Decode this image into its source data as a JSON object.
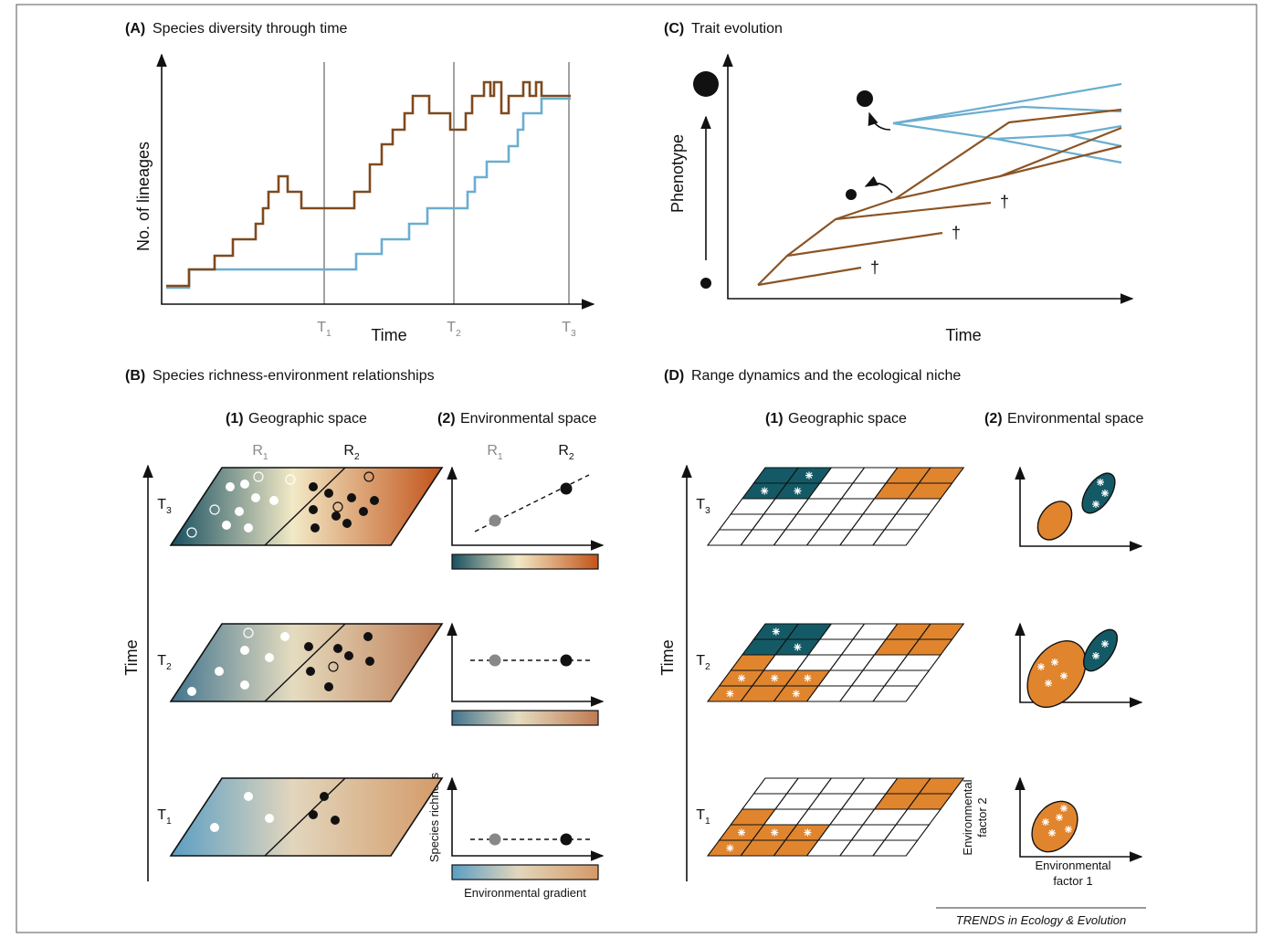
{
  "panel_a": {
    "label": "(A)",
    "title": "Species diversity through time",
    "y_label": "No. of lineages",
    "x_label": "Time",
    "ticks": [
      {
        "letter": "T",
        "index": "1"
      },
      {
        "letter": "T",
        "index": "2"
      },
      {
        "letter": "T",
        "index": "3"
      }
    ]
  },
  "panel_b": {
    "label": "(B)",
    "title": "Species richness-environment relationships",
    "time_label": "Time",
    "time_steps": [
      {
        "letter": "T",
        "index": "3"
      },
      {
        "letter": "T",
        "index": "2"
      },
      {
        "letter": "T",
        "index": "1"
      }
    ],
    "geo": {
      "label": "(1)",
      "title": "Geographic space",
      "regions": [
        {
          "letter": "R",
          "index": "1"
        },
        {
          "letter": "R",
          "index": "2"
        }
      ]
    },
    "env": {
      "label": "(2)",
      "title": "Environmental space",
      "regions": [
        {
          "letter": "R",
          "index": "1"
        },
        {
          "letter": "R",
          "index": "2"
        }
      ],
      "y_label": "Species richness",
      "x_label": "Environmental gradient"
    }
  },
  "panel_c": {
    "label": "(C)",
    "title": "Trait evolution",
    "y_label": "Phenotype",
    "x_label": "Time",
    "daggers": [
      "†",
      "†",
      "†"
    ]
  },
  "panel_d": {
    "label": "(D)",
    "title": "Range dynamics and the ecological niche",
    "time_label": "Time",
    "time_steps": [
      {
        "letter": "T",
        "index": "3"
      },
      {
        "letter": "T",
        "index": "2"
      },
      {
        "letter": "T",
        "index": "1"
      }
    ],
    "geo": {
      "label": "(1)",
      "title": "Geographic space"
    },
    "env": {
      "label": "(2)",
      "title": "Environmental space",
      "y_label": [
        "Environmental",
        "factor 2"
      ],
      "x_label": [
        "Environmental",
        "factor 1"
      ]
    }
  },
  "footer": "TRENDS in Ecology & Evolution"
}
